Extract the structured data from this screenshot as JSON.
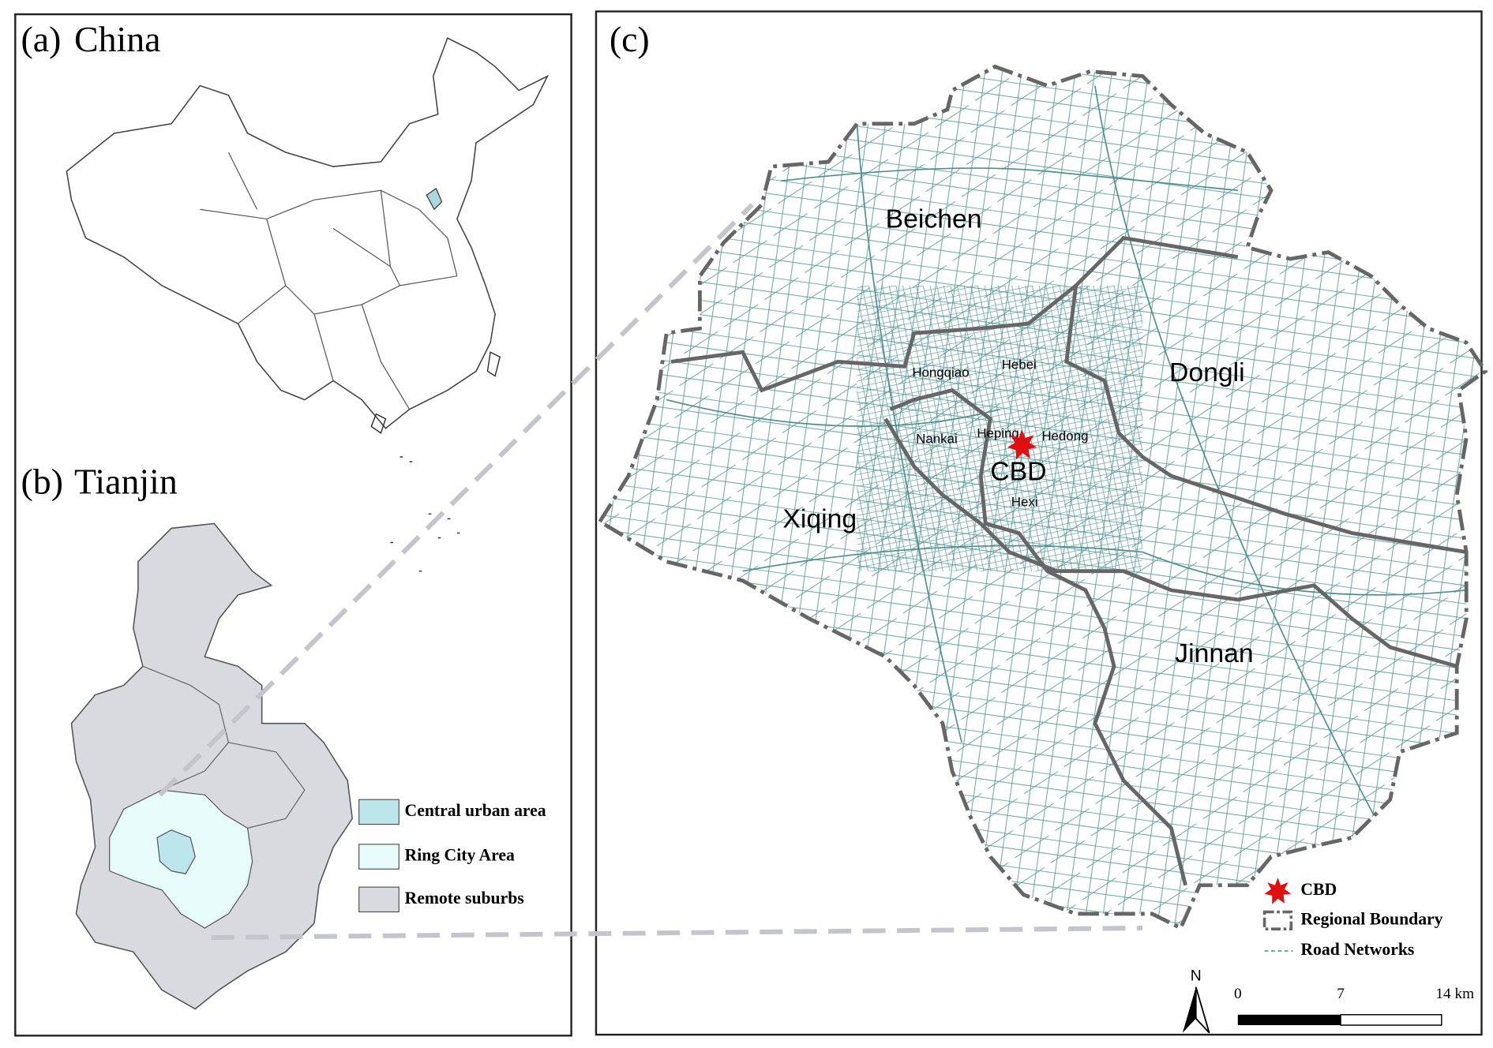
{
  "panel_a": {
    "label": "(a)",
    "title": "China"
  },
  "panel_b": {
    "label": "(b)",
    "title": "Tianjin",
    "legend": [
      "Central urban area",
      "Ring City Area",
      "Remote suburbs"
    ]
  },
  "panel_c": {
    "label": "(c)",
    "districts": [
      "Beichen",
      "Dongli",
      "Xiqing",
      "Jinnan"
    ],
    "inner_districts": [
      "Hongqiao",
      "Hebei",
      "Nankai",
      "Heping",
      "Hedong",
      "Hexi"
    ],
    "center": "CBD",
    "legend": [
      "CBD",
      "Regional Boundary",
      "Road Networks"
    ],
    "north": "N",
    "scale_bar": [
      "0",
      "7",
      "14 km"
    ]
  }
}
